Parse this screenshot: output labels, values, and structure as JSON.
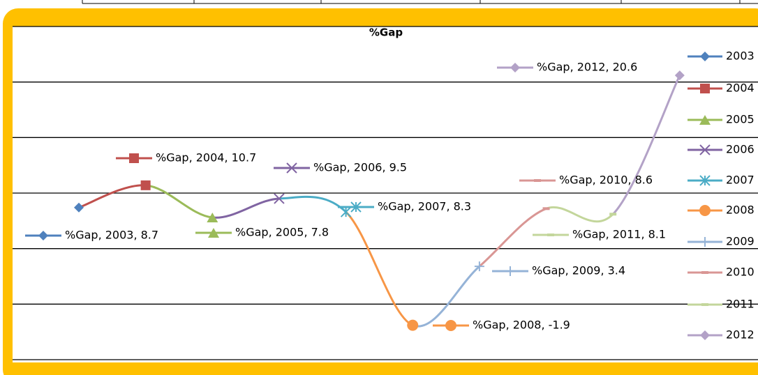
{
  "chart_data": {
    "type": "line",
    "title": "%Gap",
    "categories": [
      "2003",
      "2004",
      "2005",
      "2006",
      "2007",
      "2008",
      "2009",
      "2010",
      "2011",
      "2012"
    ],
    "values": [
      8.7,
      10.7,
      7.8,
      9.5,
      8.3,
      -1.9,
      3.4,
      8.6,
      8.1,
      20.6
    ],
    "value_labels": [
      "%Gap, 2003, 8.7",
      "%Gap, 2004, 10.7",
      "%Gap, 2005, 7.8",
      "%Gap, 2006, 9.5",
      "%Gap, 2007, 8.3",
      "%Gap, 2008, -1.9",
      "%Gap, 2009, 3.4",
      "%Gap, 2010, 8.6",
      "%Gap, 2011, 8.1",
      "%Gap, 2012, 20.6"
    ],
    "colors": [
      "#4f81bd",
      "#c0504d",
      "#9bbb59",
      "#8064a2",
      "#4bacc6",
      "#f79646",
      "#95b3d7",
      "#d99694",
      "#c3d69b",
      "#b3a2c7"
    ],
    "markers": [
      "diamond",
      "square",
      "triangle",
      "x",
      "star",
      "circle",
      "plus",
      "dash",
      "dash",
      "diamond"
    ],
    "ylim": [
      -5,
      25
    ],
    "yticks": [
      -5,
      0,
      5,
      10,
      15,
      20,
      25
    ],
    "grid": true,
    "smooth": true,
    "legend": "right"
  }
}
